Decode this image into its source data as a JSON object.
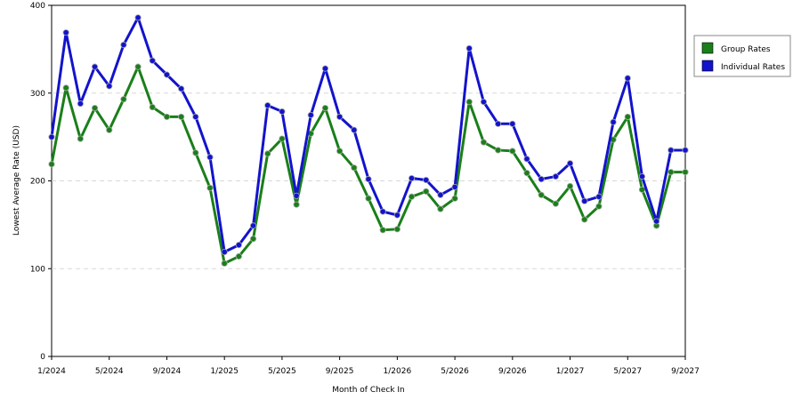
{
  "chart_data": {
    "type": "line",
    "title": "",
    "xlabel": "Month of Check In",
    "ylabel": "Lowest Average Rate (USD)",
    "ylim": [
      0,
      400
    ],
    "yticks": [
      "0",
      "100",
      "200",
      "300",
      "400"
    ],
    "xticks": [
      "1/2024",
      "5/2024",
      "9/2024",
      "1/2025",
      "5/2025",
      "9/2025",
      "1/2026",
      "5/2026",
      "9/2026",
      "1/2027",
      "5/2027",
      "9/2027"
    ],
    "x": [
      "1/2024",
      "2/2024",
      "3/2024",
      "4/2024",
      "5/2024",
      "6/2024",
      "7/2024",
      "8/2024",
      "9/2024",
      "10/2024",
      "11/2024",
      "12/2024",
      "1/2025",
      "2/2025",
      "3/2025",
      "4/2025",
      "5/2025",
      "6/2025",
      "7/2025",
      "8/2025",
      "9/2025",
      "10/2025",
      "11/2025",
      "12/2025",
      "1/2026",
      "2/2026",
      "3/2026",
      "4/2026",
      "5/2026",
      "6/2026",
      "7/2026",
      "8/2026",
      "9/2026",
      "10/2026",
      "11/2026",
      "12/2026",
      "1/2027",
      "2/2027",
      "3/2027",
      "4/2027",
      "5/2027",
      "6/2027",
      "7/2027",
      "8/2027",
      "9/2027"
    ],
    "grid": "horizontal-dashed",
    "legend_position": "top-right",
    "series": [
      {
        "name": "Group Rates",
        "color": "#1a7f1a",
        "values": [
          219,
          306,
          248,
          283,
          258,
          293,
          330,
          284,
          273,
          273,
          232,
          192,
          106,
          114,
          134,
          231,
          248,
          173,
          254,
          283,
          234,
          215,
          180,
          144,
          145,
          182,
          188,
          168,
          180,
          290,
          244,
          235,
          234,
          209,
          184,
          174,
          194,
          156,
          171,
          247,
          273,
          190,
          149,
          210,
          210
        ]
      },
      {
        "name": "Individual Rates",
        "color": "#1313cc",
        "values": [
          250,
          369,
          288,
          330,
          308,
          355,
          386,
          337,
          321,
          305,
          273,
          227,
          119,
          127,
          149,
          286,
          279,
          183,
          275,
          328,
          273,
          258,
          202,
          165,
          161,
          203,
          201,
          184,
          193,
          351,
          290,
          265,
          265,
          225,
          202,
          205,
          220,
          177,
          182,
          267,
          317,
          205,
          154,
          235,
          235
        ]
      }
    ]
  }
}
